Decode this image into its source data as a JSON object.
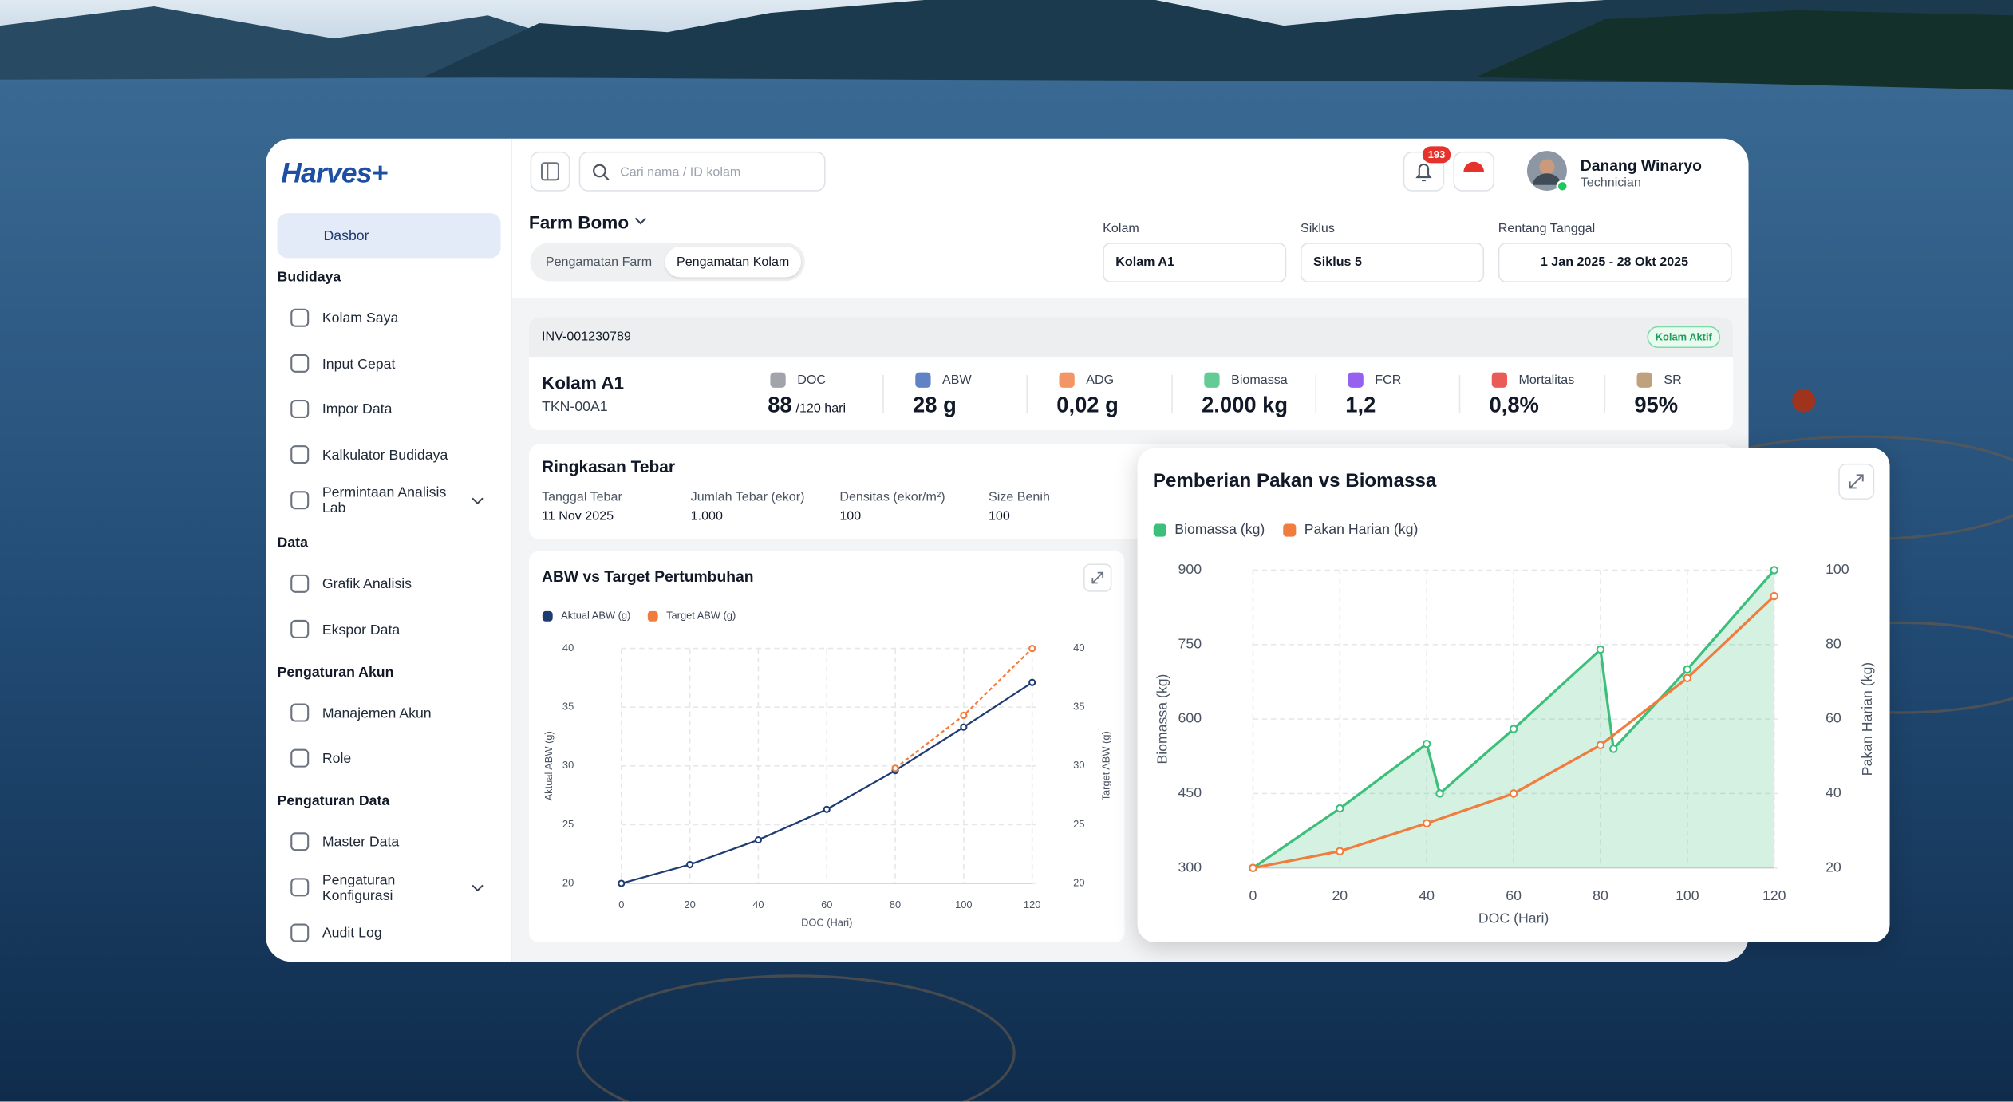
{
  "logo": "Harves+",
  "sidebar": {
    "home": "Dasbor",
    "sections": [
      {
        "title": "Budidaya",
        "items": [
          "Kolam Saya",
          "Input Cepat",
          "Impor Data",
          "Kalkulator Budidaya",
          "Permintaan Analisis Lab"
        ]
      },
      {
        "title": "Data",
        "items": [
          "Grafik Analisis",
          "Ekspor Data"
        ]
      },
      {
        "title": "Pengaturan Akun",
        "items": [
          "Manajemen Akun",
          "Role"
        ]
      },
      {
        "title": "Pengaturan Data",
        "items": [
          "Master Data",
          "Pengaturan Konfigurasi",
          "Audit Log"
        ]
      }
    ]
  },
  "header": {
    "search_placeholder": "Cari nama / ID kolam",
    "notifications": "193",
    "user_name": "Danang Winaryo",
    "user_role": "Technician"
  },
  "farm": {
    "name": "Farm Bomo",
    "tabs": [
      "Pengamatan Farm",
      "Pengamatan Kolam"
    ],
    "filters": [
      {
        "label": "Kolam",
        "value": "Kolam A1"
      },
      {
        "label": "Siklus",
        "value": "Siklus 5"
      },
      {
        "label": "Rentang Tanggal",
        "value": "1 Jan 2025 - 28 Okt 2025"
      }
    ]
  },
  "pond": {
    "invoice": "INV-001230789",
    "status": "Kolam Aktif",
    "name": "Kolam A1",
    "code": "TKN-00A1",
    "metrics": [
      {
        "label": "DOC",
        "value": "88",
        "unit": "/120 hari"
      },
      {
        "label": "ABW",
        "value": "28 g"
      },
      {
        "label": "ADG",
        "value": "0,02 g"
      },
      {
        "label": "Biomassa",
        "value": "2.000 kg"
      },
      {
        "label": "FCR",
        "value": "1,2"
      },
      {
        "label": "Mortalitas",
        "value": "0,8%"
      },
      {
        "label": "SR",
        "value": "95%"
      }
    ]
  },
  "stocking": {
    "title": "Ringkasan Tebar",
    "fields": [
      {
        "label": "Tanggal Tebar",
        "value": "11 Nov 2025"
      },
      {
        "label": "Jumlah Tebar (ekor)",
        "value": "1.000"
      },
      {
        "label": "Densitas (ekor/m²)",
        "value": "100"
      },
      {
        "label": "Size Benih",
        "value": "100"
      }
    ]
  },
  "chart_data": [
    {
      "type": "line",
      "title": "ABW vs Target Pertumbuhan",
      "x_label": "DOC (Hari)",
      "y_label": "Aktual ABW (g)",
      "y2_label": "Target ABW (g)",
      "x": [
        0,
        20,
        40,
        60,
        80,
        100,
        120
      ],
      "xlim": [
        0,
        120
      ],
      "xticks": [
        0,
        20,
        40,
        60,
        80,
        100,
        120
      ],
      "ylim": [
        20,
        40
      ],
      "yticks": [
        20,
        25,
        30,
        35,
        40
      ],
      "y2lim": [
        20,
        40
      ],
      "y2ticks": [
        20,
        25,
        30,
        35,
        40
      ],
      "grid": true,
      "series": [
        {
          "name": "Aktual ABW (g)",
          "color": "#1f3c72",
          "values": [
            20,
            21.6,
            23.7,
            26.3,
            29.6,
            33.3,
            37.1
          ]
        },
        {
          "name": "Target ABW (g)",
          "color": "#f07c3e",
          "axis": "y2",
          "dashed": true,
          "values": [
            null,
            null,
            null,
            null,
            29.8,
            34.3,
            40
          ]
        }
      ]
    },
    {
      "type": "line",
      "title": "Pemberian Pakan vs Biomassa",
      "x_label": "DOC (Hari)",
      "y_label": "Biomassa (kg)",
      "y2_label": "Pakan Harian (kg)",
      "xlim": [
        0,
        120
      ],
      "xticks": [
        0,
        20,
        40,
        60,
        80,
        100,
        120
      ],
      "ylim": [
        300,
        900
      ],
      "yticks": [
        300,
        450,
        600,
        750,
        900
      ],
      "y2lim": [
        20,
        100
      ],
      "y2ticks": [
        20,
        40,
        60,
        80,
        100
      ],
      "grid": true,
      "series": [
        {
          "name": "Biomassa (kg)",
          "color": "#3cbf7a",
          "area": true,
          "x": [
            0,
            20,
            40,
            43,
            60,
            80,
            83,
            100,
            120
          ],
          "values": [
            300,
            420,
            550,
            450,
            580,
            740,
            540,
            700,
            900
          ]
        },
        {
          "name": "Pakan Harian (kg)",
          "color": "#f07c3e",
          "axis": "y2",
          "x": [
            0,
            20,
            40,
            60,
            80,
            100,
            120
          ],
          "values": [
            20,
            24.5,
            32,
            40,
            53,
            71,
            93
          ]
        }
      ]
    }
  ]
}
